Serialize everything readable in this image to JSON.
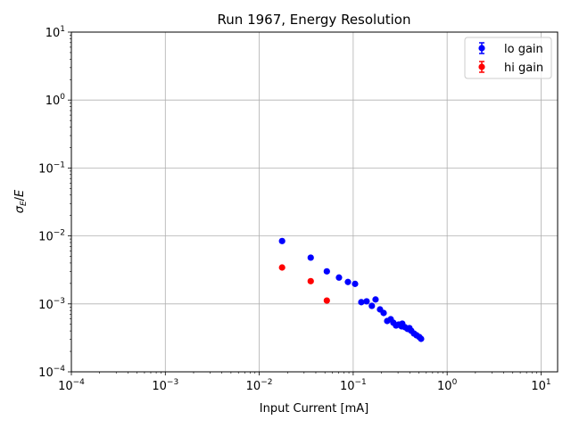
{
  "chart_data": {
    "type": "scatter",
    "title": "Run 1967, Energy Resolution",
    "xlabel": "Input Current [mA]",
    "ylabel": "σ_E/E",
    "xscale": "log",
    "yscale": "log",
    "xlim": [
      0.0001,
      15
    ],
    "ylim": [
      0.0001,
      10
    ],
    "x_ticks": [
      {
        "value": 0.0001,
        "base": "10",
        "exp": "−4"
      },
      {
        "value": 0.001,
        "base": "10",
        "exp": "−3"
      },
      {
        "value": 0.01,
        "base": "10",
        "exp": "−2"
      },
      {
        "value": 0.1,
        "base": "10",
        "exp": "−1"
      },
      {
        "value": 1,
        "base": "10",
        "exp": "0"
      },
      {
        "value": 10,
        "base": "10",
        "exp": "1"
      }
    ],
    "y_ticks": [
      {
        "value": 0.0001,
        "base": "10",
        "exp": "−4"
      },
      {
        "value": 0.001,
        "base": "10",
        "exp": "−3"
      },
      {
        "value": 0.01,
        "base": "10",
        "exp": "−2"
      },
      {
        "value": 0.1,
        "base": "10",
        "exp": "−1"
      },
      {
        "value": 1,
        "base": "10",
        "exp": "0"
      },
      {
        "value": 10,
        "base": "10",
        "exp": "1"
      }
    ],
    "grid": true,
    "legend_position": "top-right",
    "series": [
      {
        "name": "lo gain",
        "color": "#0000ff",
        "x": [
          0.0175,
          0.0353,
          0.0524,
          0.0706,
          0.0879,
          0.1047,
          0.122,
          0.139,
          0.158,
          0.173,
          0.193,
          0.211,
          0.23,
          0.251,
          0.268,
          0.286,
          0.305,
          0.327,
          0.333,
          0.356,
          0.38,
          0.397,
          0.415,
          0.444,
          0.473,
          0.506,
          0.528
        ],
        "y": [
          0.00841,
          0.00479,
          0.00301,
          0.00244,
          0.0021,
          0.00197,
          0.00106,
          0.00109,
          0.000935,
          0.00116,
          0.000829,
          0.000735,
          0.00056,
          0.000594,
          0.000527,
          0.000481,
          0.000497,
          0.000467,
          0.000512,
          0.000453,
          0.000427,
          0.00044,
          0.000402,
          0.000366,
          0.000345,
          0.000325,
          0.000306
        ]
      },
      {
        "name": "hi gain",
        "color": "#ff0000",
        "x": [
          0.0175,
          0.0353,
          0.0524
        ],
        "y": [
          0.00343,
          0.00216,
          0.00112
        ]
      }
    ]
  }
}
